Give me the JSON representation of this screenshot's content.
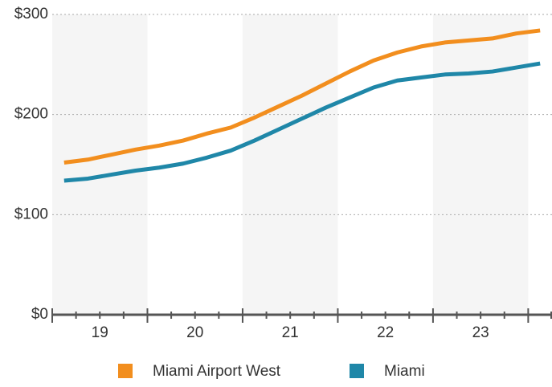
{
  "chart_data": {
    "type": "line",
    "x": [
      19.125,
      19.375,
      19.625,
      19.875,
      20.125,
      20.375,
      20.625,
      20.875,
      21.125,
      21.375,
      21.625,
      21.875,
      22.125,
      22.375,
      22.625,
      22.875,
      23.125,
      23.375,
      23.625,
      23.875,
      24.125
    ],
    "series": [
      {
        "name": "Miami Airport West",
        "color": "#f28e1e",
        "values": [
          152,
          155,
          160,
          165,
          169,
          174,
          181,
          187,
          197,
          208,
          219,
          231,
          243,
          254,
          262,
          268,
          272,
          274,
          276,
          281,
          284
        ]
      },
      {
        "name": "Miami",
        "color": "#1f87a8",
        "values": [
          134,
          136,
          140,
          144,
          147,
          151,
          157,
          164,
          174,
          185,
          196,
          207,
          217,
          227,
          234,
          237,
          240,
          241,
          243,
          247,
          251
        ]
      }
    ],
    "xlim": [
      19,
      24.25
    ],
    "xticks": [
      {
        "value": 19.5,
        "label": "19"
      },
      {
        "value": 20.5,
        "label": "20"
      },
      {
        "value": 21.5,
        "label": "21"
      },
      {
        "value": 22.5,
        "label": "22"
      },
      {
        "value": 23.5,
        "label": "23"
      }
    ],
    "ylim": [
      0,
      300
    ],
    "yticks": [
      {
        "value": 0,
        "label": "$0"
      },
      {
        "value": 100,
        "label": "$100"
      },
      {
        "value": 200,
        "label": "$200"
      },
      {
        "value": 300,
        "label": "$300"
      }
    ],
    "grid": true,
    "legend": "bottom"
  }
}
